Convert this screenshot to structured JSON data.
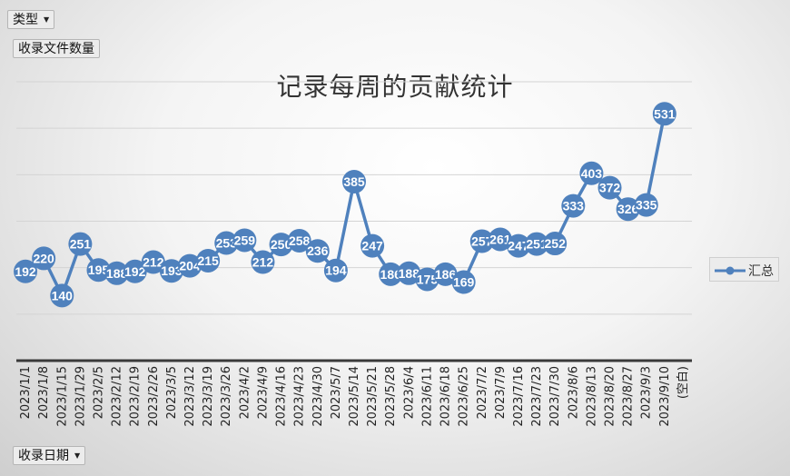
{
  "filters": {
    "type_label": "类型",
    "value_field": "收录文件数量",
    "date_label": "收录日期"
  },
  "colors": {
    "series": "#4f81bd",
    "grid": "#d4d4d4",
    "axis": "#3a3a3a"
  },
  "legend": {
    "label": "汇总"
  },
  "chart_data": {
    "type": "line",
    "title": "记录每周的贡献统计",
    "xlabel": "",
    "ylabel": "",
    "categories": [
      "2023/1/1",
      "2023/1/8",
      "2023/1/15",
      "2023/1/29",
      "2023/2/5",
      "2023/2/12",
      "2023/2/19",
      "2023/2/26",
      "2023/3/5",
      "2023/3/12",
      "2023/3/19",
      "2023/3/26",
      "2023/4/2",
      "2023/4/9",
      "2023/4/16",
      "2023/4/23",
      "2023/4/30",
      "2023/5/7",
      "2023/5/14",
      "2023/5/21",
      "2023/5/28",
      "2023/6/4",
      "2023/6/11",
      "2023/6/18",
      "2023/6/25",
      "2023/7/2",
      "2023/7/9",
      "2023/7/16",
      "2023/7/23",
      "2023/7/30",
      "2023/8/6",
      "2023/8/13",
      "2023/8/20",
      "2023/8/27",
      "2023/9/3",
      "2023/9/10",
      "(空白)"
    ],
    "series": [
      {
        "name": "汇总",
        "values": [
          192,
          220,
          140,
          251,
          195,
          188,
          192,
          212,
          193,
          204,
          215,
          253,
          259,
          212,
          250,
          258,
          236,
          194,
          385,
          247,
          186,
          188,
          175,
          186,
          169,
          257,
          261,
          247,
          251,
          252,
          333,
          403,
          372,
          326,
          335,
          531,
          null
        ]
      }
    ],
    "ylim": [
      0,
      600
    ],
    "grid": true,
    "legend_position": "right",
    "data_labels": true
  }
}
